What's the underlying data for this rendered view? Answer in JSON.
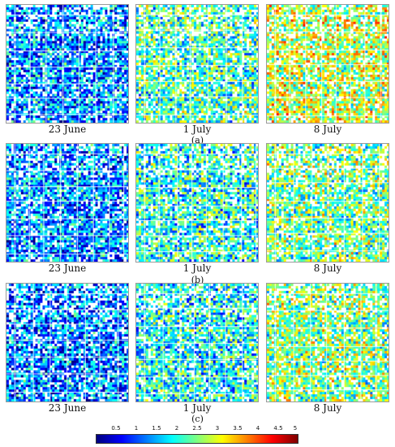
{
  "rows": [
    {
      "label": "(a)",
      "panels": [
        {
          "caption": "23 June",
          "mean_level": 1.3
        },
        {
          "caption": "1 July",
          "mean_level": 2.2
        },
        {
          "caption": "8 July",
          "mean_level": 2.8
        }
      ]
    },
    {
      "label": "(b)",
      "panels": [
        {
          "caption": "23 June",
          "mean_level": 1.3
        },
        {
          "caption": "1 July",
          "mean_level": 2.0
        },
        {
          "caption": "8 July",
          "mean_level": 2.4
        }
      ]
    },
    {
      "label": "(c)",
      "panels": [
        {
          "caption": "23 June",
          "mean_level": 1.2
        },
        {
          "caption": "1 July",
          "mean_level": 1.9
        },
        {
          "caption": "8 July",
          "mean_level": 2.5
        }
      ]
    }
  ],
  "colorbar": {
    "min": 0,
    "max": 5,
    "ticks": [
      "0.5",
      "1",
      "1.5",
      "2",
      "2.5",
      "3",
      "3.5",
      "4",
      "4.5",
      "5"
    ],
    "colormap": "jet"
  }
}
